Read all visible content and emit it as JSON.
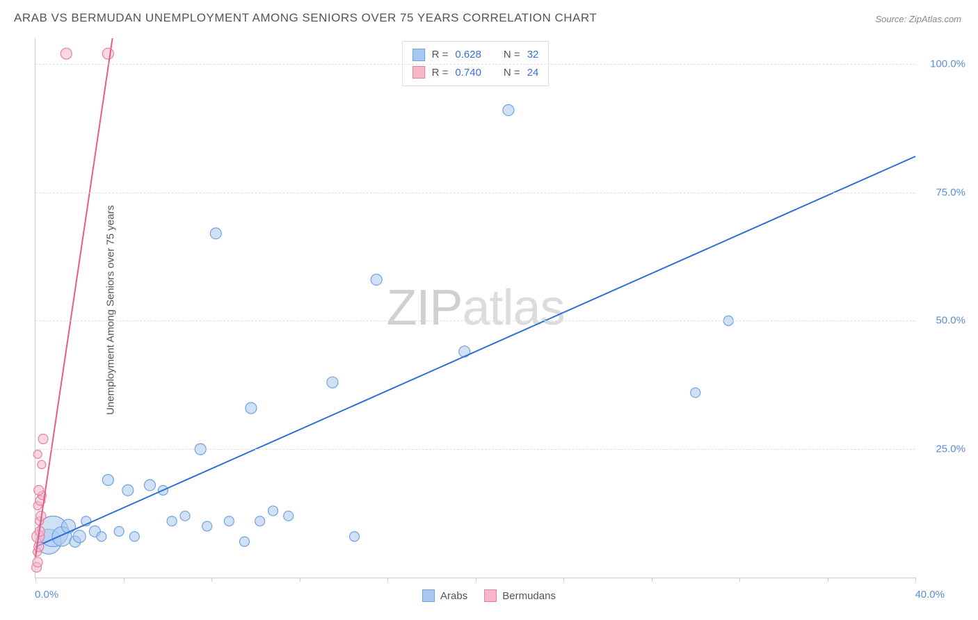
{
  "title": "ARAB VS BERMUDAN UNEMPLOYMENT AMONG SENIORS OVER 75 YEARS CORRELATION CHART",
  "source": "Source: ZipAtlas.com",
  "y_axis_label": "Unemployment Among Seniors over 75 years",
  "watermark": {
    "bold": "ZIP",
    "light": "atlas"
  },
  "chart": {
    "type": "scatter",
    "xlim": [
      0,
      40
    ],
    "ylim": [
      0,
      105
    ],
    "x_ticks_percent": [
      0,
      10,
      20,
      30,
      40,
      50,
      60,
      70,
      80,
      90,
      100
    ],
    "y_gridlines": [
      25,
      50,
      75,
      100
    ],
    "y_tick_labels": [
      "25.0%",
      "50.0%",
      "75.0%",
      "100.0%"
    ],
    "x_origin_label": "0.0%",
    "x_max_label": "40.0%",
    "background_color": "#ffffff",
    "grid_color": "#e0e0e0",
    "series": [
      {
        "name": "Arabs",
        "color_fill": "#a9c8ef",
        "color_stroke": "#6fa3e0",
        "fill_opacity": 0.55,
        "points": [
          {
            "x": 0.6,
            "y": 7,
            "r": 18
          },
          {
            "x": 0.8,
            "y": 9,
            "r": 22
          },
          {
            "x": 1.2,
            "y": 8,
            "r": 14
          },
          {
            "x": 1.5,
            "y": 10,
            "r": 10
          },
          {
            "x": 1.8,
            "y": 7,
            "r": 8
          },
          {
            "x": 2.0,
            "y": 8,
            "r": 9
          },
          {
            "x": 2.3,
            "y": 11,
            "r": 7
          },
          {
            "x": 2.7,
            "y": 9,
            "r": 8
          },
          {
            "x": 3.0,
            "y": 8,
            "r": 7
          },
          {
            "x": 3.3,
            "y": 19,
            "r": 8
          },
          {
            "x": 3.8,
            "y": 9,
            "r": 7
          },
          {
            "x": 4.2,
            "y": 17,
            "r": 8
          },
          {
            "x": 4.5,
            "y": 8,
            "r": 7
          },
          {
            "x": 5.2,
            "y": 18,
            "r": 8
          },
          {
            "x": 5.8,
            "y": 17,
            "r": 7
          },
          {
            "x": 6.2,
            "y": 11,
            "r": 7
          },
          {
            "x": 6.8,
            "y": 12,
            "r": 7
          },
          {
            "x": 7.5,
            "y": 25,
            "r": 8
          },
          {
            "x": 7.8,
            "y": 10,
            "r": 7
          },
          {
            "x": 8.2,
            "y": 67,
            "r": 8
          },
          {
            "x": 8.8,
            "y": 11,
            "r": 7
          },
          {
            "x": 9.5,
            "y": 7,
            "r": 7
          },
          {
            "x": 9.8,
            "y": 33,
            "r": 8
          },
          {
            "x": 10.2,
            "y": 11,
            "r": 7
          },
          {
            "x": 10.8,
            "y": 13,
            "r": 7
          },
          {
            "x": 11.5,
            "y": 12,
            "r": 7
          },
          {
            "x": 13.5,
            "y": 38,
            "r": 8
          },
          {
            "x": 14.5,
            "y": 8,
            "r": 7
          },
          {
            "x": 15.5,
            "y": 58,
            "r": 8
          },
          {
            "x": 19.5,
            "y": 44,
            "r": 8
          },
          {
            "x": 21.5,
            "y": 91,
            "r": 8
          },
          {
            "x": 30.0,
            "y": 36,
            "r": 7
          },
          {
            "x": 31.5,
            "y": 50,
            "r": 7
          }
        ],
        "trendline": {
          "x1": 0,
          "y1": 6,
          "x2": 40,
          "y2": 82,
          "color": "#2d6fd8",
          "width": 2
        }
      },
      {
        "name": "Bermudans",
        "color_fill": "#f5b8c8",
        "color_stroke": "#e87fa0",
        "fill_opacity": 0.55,
        "points": [
          {
            "x": 0.05,
            "y": 2,
            "r": 7
          },
          {
            "x": 0.1,
            "y": 3,
            "r": 7
          },
          {
            "x": 0.08,
            "y": 5,
            "r": 6
          },
          {
            "x": 0.15,
            "y": 6,
            "r": 7
          },
          {
            "x": 0.12,
            "y": 8,
            "r": 9
          },
          {
            "x": 0.2,
            "y": 9,
            "r": 7
          },
          {
            "x": 0.18,
            "y": 11,
            "r": 6
          },
          {
            "x": 0.25,
            "y": 12,
            "r": 7
          },
          {
            "x": 0.1,
            "y": 14,
            "r": 6
          },
          {
            "x": 0.22,
            "y": 15,
            "r": 7
          },
          {
            "x": 0.3,
            "y": 16,
            "r": 6
          },
          {
            "x": 0.15,
            "y": 17,
            "r": 7
          },
          {
            "x": 0.28,
            "y": 22,
            "r": 6
          },
          {
            "x": 0.1,
            "y": 24,
            "r": 6
          },
          {
            "x": 0.35,
            "y": 27,
            "r": 7
          },
          {
            "x": 1.4,
            "y": 102,
            "r": 8
          },
          {
            "x": 3.3,
            "y": 102,
            "r": 8
          }
        ],
        "trendline": {
          "x1": 0,
          "y1": 4,
          "x2": 3.5,
          "y2": 105,
          "color": "#e85a8a",
          "width": 2
        }
      }
    ]
  },
  "stats": [
    {
      "swatch_fill": "#a9c8ef",
      "swatch_stroke": "#6fa3e0",
      "r": "0.628",
      "n": "32"
    },
    {
      "swatch_fill": "#f5b8c8",
      "swatch_stroke": "#e87fa0",
      "r": "0.740",
      "n": "24"
    }
  ],
  "legend": [
    {
      "swatch_fill": "#a9c8ef",
      "swatch_stroke": "#6fa3e0",
      "label": "Arabs"
    },
    {
      "swatch_fill": "#f5b8c8",
      "swatch_stroke": "#e87fa0",
      "label": "Bermudans"
    }
  ]
}
